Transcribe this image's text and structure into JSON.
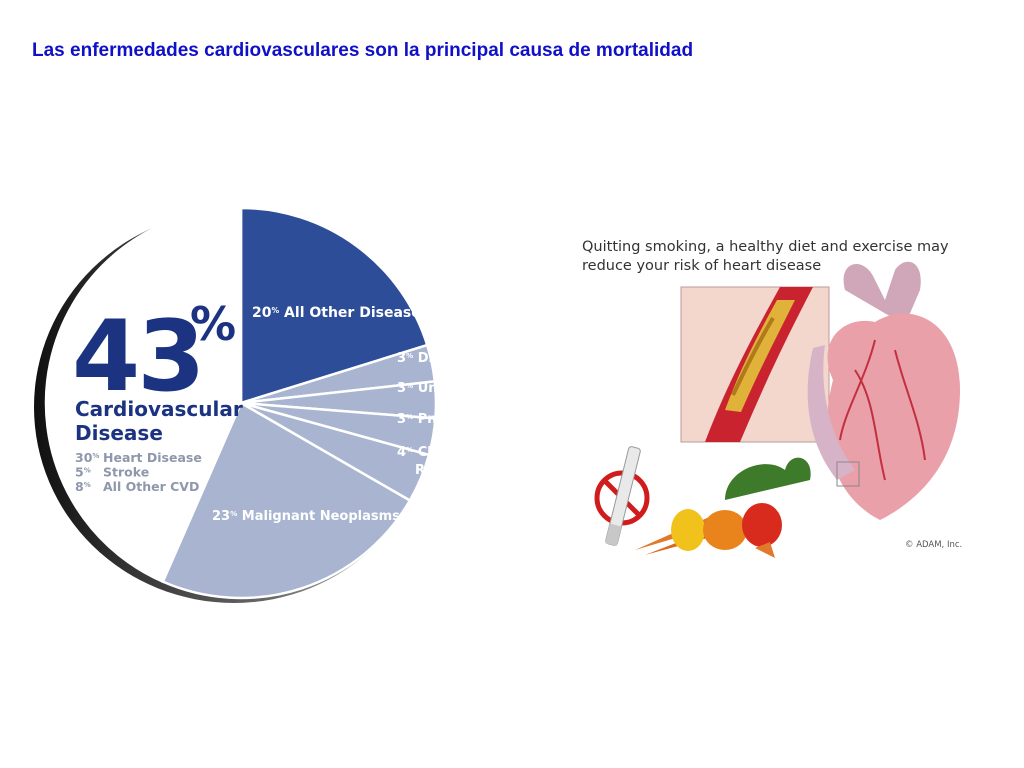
{
  "slide": {
    "title": "Las enfermedades cardiovasculares son la principal causa de mortalidad"
  },
  "chart_data": {
    "type": "pie",
    "title": "",
    "slices": [
      {
        "label": "All Other Diseases",
        "value": 20,
        "display": "20",
        "color": "#2d4d99"
      },
      {
        "label": "Diabetes",
        "value": 3,
        "display": "3",
        "color": "#a8b4d0"
      },
      {
        "label": "Unintentional Injury",
        "value": 3,
        "display": "3",
        "color": "#a8b4d0"
      },
      {
        "label": "Pneumonia",
        "value": 3,
        "display": "3",
        "color": "#a8b4d0"
      },
      {
        "label": "Chronic Low Respiratory Disease",
        "label_lines": [
          "Chronic Low",
          "Respiratory Disease"
        ],
        "value": 4,
        "display": "4",
        "color": "#a8b4d0"
      },
      {
        "label": "Malignant Neoplasms",
        "value": 23,
        "display": "23",
        "color": "#a8b4d0"
      },
      {
        "label": "Cardiovascular Disease",
        "value": 43,
        "display": "43",
        "color": "#ffffff"
      }
    ],
    "highlight": {
      "value": "43",
      "percent_sign": "%",
      "label_lines": [
        "Cardiovascular",
        "Disease"
      ],
      "breakdown": [
        {
          "value": "30",
          "label": "Heart Disease"
        },
        {
          "value": "5",
          "label": "Stroke"
        },
        {
          "value": "8",
          "label": "All Other CVD"
        }
      ]
    },
    "percent_unit": "%"
  },
  "illustration": {
    "caption": "Quitting smoking, a healthy diet and exercise may reduce your risk of heart disease",
    "copyright": "© ADAM, Inc."
  }
}
